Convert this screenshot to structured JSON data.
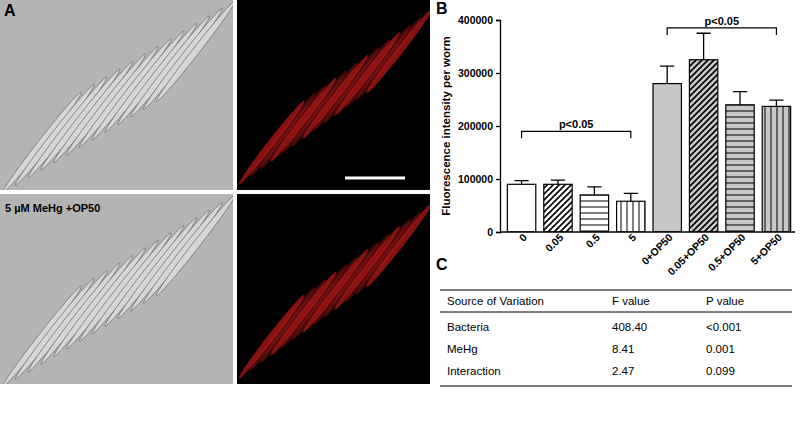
{
  "chart_data": {
    "type": "bar",
    "panel_label": "B",
    "y_label": "Fluorescence intensity per worm",
    "categories": [
      "0",
      "0.05",
      "0.5",
      "5",
      "0+OP50",
      "0.05+OP50",
      "0.5+OP50",
      "5+OP50"
    ],
    "values": [
      90000,
      90000,
      70000,
      58000,
      280000,
      325000,
      240000,
      237000
    ],
    "errors": [
      7000,
      8000,
      15000,
      15000,
      33000,
      50000,
      25000,
      12000
    ],
    "colors": [
      "#ffffff",
      "#ffffff",
      "#ffffff",
      "#ffffff",
      "#c8c8c8",
      "#c8c8c8",
      "#c8c8c8",
      "#c8c8c8"
    ],
    "ylim": [
      0,
      400000
    ],
    "yticks": [
      0,
      100000,
      200000,
      300000,
      400000
    ],
    "annotations": [
      {
        "label": "p<0.05",
        "from": 0,
        "to": 3,
        "y": 190000
      },
      {
        "label": "p<0.05",
        "from": 4,
        "to": 7,
        "y": 385000
      }
    ]
  },
  "panel_a": {
    "label": "A",
    "caption": "5 µM MeHg +OP50"
  },
  "panel_c": {
    "label": "C",
    "table": {
      "header": [
        "Source of Variation",
        "F value",
        "P value"
      ],
      "rows": [
        [
          "Bacteria",
          "408.40",
          "<0.001"
        ],
        [
          "MeHg",
          "8.41",
          "0.001"
        ],
        [
          "Interaction",
          "2.47",
          "0.099"
        ]
      ]
    }
  }
}
